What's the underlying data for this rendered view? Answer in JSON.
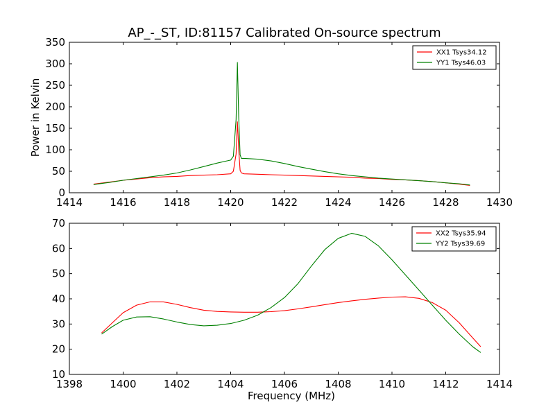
{
  "figure": {
    "title": "AP_-_ST, ID:81157 Calibrated On-source spectrum"
  },
  "chart_data": [
    {
      "type": "line",
      "title": "AP_-_ST, ID:81157 Calibrated On-source spectrum",
      "xlabel": "",
      "ylabel": "Power in Kelvin",
      "xlim": [
        1414,
        1430
      ],
      "ylim": [
        0,
        350
      ],
      "xticks": [
        1414,
        1416,
        1418,
        1420,
        1422,
        1424,
        1426,
        1428,
        1430
      ],
      "yticks": [
        0,
        50,
        100,
        150,
        200,
        250,
        300,
        350
      ],
      "legend_position": "top-right",
      "grid": false,
      "series": [
        {
          "name": "XX1 Tsys34.12",
          "color": "#ff0000",
          "x": [
            1414.9,
            1415.5,
            1416.0,
            1416.5,
            1417.0,
            1417.5,
            1418.0,
            1418.5,
            1419.0,
            1419.5,
            1420.0,
            1420.1,
            1420.2,
            1420.25,
            1420.3,
            1420.35,
            1420.4,
            1420.5,
            1421.0,
            1421.5,
            1422.0,
            1422.5,
            1423.0,
            1423.5,
            1424.0,
            1424.5,
            1425.0,
            1425.5,
            1426.0,
            1426.5,
            1427.0,
            1427.5,
            1428.0,
            1428.5,
            1428.9
          ],
          "y": [
            20,
            25,
            29,
            32,
            35,
            37,
            38,
            40,
            41,
            42,
            44,
            50,
            90,
            165,
            100,
            52,
            46,
            44,
            43,
            42,
            41,
            40,
            39,
            38,
            37,
            36,
            34,
            33,
            31,
            30,
            28,
            26,
            23,
            20,
            17
          ]
        },
        {
          "name": "YY1 Tsys46.03",
          "color": "#008000",
          "x": [
            1414.9,
            1415.5,
            1416.0,
            1416.5,
            1417.0,
            1417.5,
            1418.0,
            1418.5,
            1419.0,
            1419.5,
            1420.0,
            1420.1,
            1420.2,
            1420.25,
            1420.3,
            1420.35,
            1420.4,
            1420.5,
            1421.0,
            1421.5,
            1422.0,
            1422.5,
            1423.0,
            1423.5,
            1424.0,
            1424.5,
            1425.0,
            1425.5,
            1426.0,
            1426.5,
            1427.0,
            1427.5,
            1428.0,
            1428.5,
            1428.9
          ],
          "y": [
            19,
            24,
            29,
            33,
            37,
            41,
            46,
            53,
            61,
            69,
            76,
            85,
            170,
            303,
            175,
            88,
            80,
            80,
            78,
            74,
            68,
            61,
            55,
            49,
            44,
            40,
            37,
            34,
            32,
            30,
            28,
            26,
            23,
            21,
            18
          ]
        }
      ]
    },
    {
      "type": "line",
      "title": "",
      "xlabel": "Frequency (MHz)",
      "ylabel": "",
      "xlim": [
        1398,
        1414
      ],
      "ylim": [
        10,
        70
      ],
      "xticks": [
        1398,
        1400,
        1402,
        1404,
        1406,
        1408,
        1410,
        1412,
        1414
      ],
      "yticks": [
        10,
        20,
        30,
        40,
        50,
        60,
        70
      ],
      "legend_position": "top-right",
      "grid": false,
      "series": [
        {
          "name": "XX2 Tsys35.94",
          "color": "#ff0000",
          "x": [
            1399.2,
            1399.6,
            1400.0,
            1400.5,
            1401.0,
            1401.5,
            1402.0,
            1402.5,
            1403.0,
            1403.5,
            1404.0,
            1404.5,
            1405.0,
            1405.5,
            1406.0,
            1406.5,
            1407.0,
            1407.5,
            1408.0,
            1408.5,
            1409.0,
            1409.5,
            1410.0,
            1410.5,
            1411.0,
            1411.5,
            1412.0,
            1412.5,
            1413.0,
            1413.3
          ],
          "y": [
            26.5,
            30.5,
            34.5,
            37.5,
            38.8,
            38.8,
            37.8,
            36.5,
            35.5,
            35.0,
            34.8,
            34.7,
            34.7,
            34.9,
            35.3,
            36.0,
            36.8,
            37.7,
            38.5,
            39.2,
            39.8,
            40.3,
            40.7,
            40.8,
            40.2,
            38.5,
            35.5,
            30.5,
            24.5,
            21.0
          ]
        },
        {
          "name": "YY2 Tsys39.69",
          "color": "#008000",
          "x": [
            1399.2,
            1399.6,
            1400.0,
            1400.5,
            1401.0,
            1401.5,
            1402.0,
            1402.5,
            1403.0,
            1403.5,
            1404.0,
            1404.5,
            1405.0,
            1405.5,
            1406.0,
            1406.5,
            1407.0,
            1407.5,
            1408.0,
            1408.5,
            1409.0,
            1409.5,
            1410.0,
            1410.5,
            1411.0,
            1411.5,
            1412.0,
            1412.5,
            1413.0,
            1413.3
          ],
          "y": [
            26.0,
            29.0,
            31.5,
            32.8,
            32.9,
            32.0,
            30.8,
            29.8,
            29.3,
            29.5,
            30.2,
            31.5,
            33.5,
            36.5,
            40.5,
            46.0,
            53.0,
            59.5,
            64.0,
            66.0,
            64.8,
            61.0,
            55.5,
            49.5,
            43.5,
            37.5,
            31.5,
            26.0,
            21.0,
            18.7
          ]
        }
      ]
    }
  ]
}
